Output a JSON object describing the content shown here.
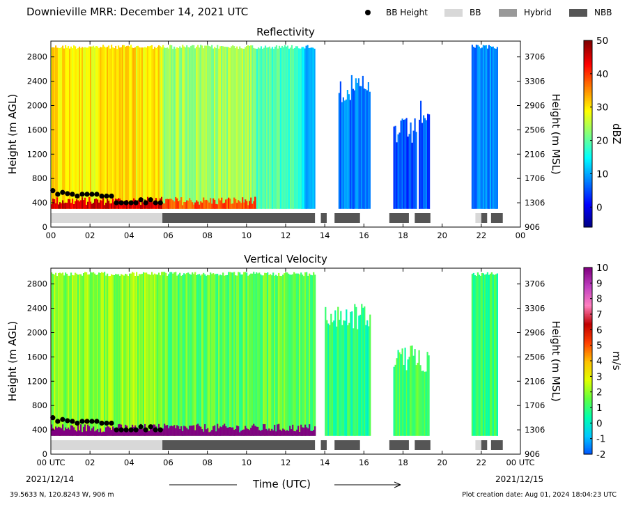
{
  "header": {
    "title": "Downieville MRR:  December 14, 2021 UTC"
  },
  "legend": {
    "items": [
      {
        "label": "BB Height",
        "color": "#000000",
        "kind": "dot"
      },
      {
        "label": "BB",
        "color": "#d8d8d8",
        "kind": "box"
      },
      {
        "label": "Hybrid",
        "color": "#999999",
        "kind": "box"
      },
      {
        "label": "NBB",
        "color": "#555555",
        "kind": "box"
      }
    ]
  },
  "footer": {
    "location": "39.5633 N, 120.8243 W, 906 m",
    "creation": "Plot creation date: Aug 01, 2024 18:04:23 UTC",
    "xlabel": "Time (UTC)",
    "date_start": "2021/12/14",
    "date_end": "2021/12/15"
  },
  "chart_data": [
    {
      "type": "heatmap",
      "title": "Reflectivity",
      "xlabel": "Time (UTC)",
      "ylabel": "Height (m AGL)",
      "ylabel_right": "Height (m MSL)",
      "colorbar_label": "dBZ",
      "xlim": [
        0,
        24
      ],
      "ylim": [
        0,
        3060
      ],
      "x_ticks": [
        "00",
        "02",
        "04",
        "06",
        "08",
        "10",
        "12",
        "14",
        "16",
        "18",
        "20",
        "22",
        "00"
      ],
      "y_ticks": [
        0,
        400,
        800,
        1200,
        1600,
        2000,
        2400,
        2800
      ],
      "y_ticks_right": [
        906,
        1306,
        1706,
        2106,
        2506,
        2906,
        3306,
        3706
      ],
      "colorbar_range": [
        -6,
        50
      ],
      "colorbar_ticks": [
        0,
        10,
        20,
        30,
        40,
        50
      ],
      "colormap": [
        "#00007f",
        "#0000ff",
        "#0080ff",
        "#00ffff",
        "#80ff80",
        "#ffff00",
        "#ff8000",
        "#ff0000",
        "#7f0000"
      ],
      "echo_segments": [
        {
          "start": 0.0,
          "end": 5.7,
          "top": 3000,
          "value": 30
        },
        {
          "start": 5.7,
          "end": 10.5,
          "top": 3000,
          "value": 24
        },
        {
          "start": 10.5,
          "end": 12.8,
          "top": 3000,
          "value": 19
        },
        {
          "start": 12.8,
          "end": 13.5,
          "top": 3000,
          "value": 12
        },
        {
          "start": 14.7,
          "end": 16.3,
          "top": 2500,
          "value": 8
        },
        {
          "start": 17.5,
          "end": 18.7,
          "top": 1800,
          "value": 5
        },
        {
          "start": 18.8,
          "end": 19.3,
          "top": 2100,
          "value": 6
        },
        {
          "start": 21.5,
          "end": 22.8,
          "top": 3000,
          "value": 9
        }
      ],
      "bb_height": {
        "x": [
          0.1,
          0.35,
          0.6,
          0.85,
          1.1,
          1.35,
          1.6,
          1.85,
          2.1,
          2.35,
          2.6,
          2.85,
          3.1,
          3.35,
          3.6,
          3.85,
          4.1,
          4.35,
          4.6,
          4.85,
          5.1,
          5.35,
          5.6
        ],
        "y": [
          600,
          540,
          570,
          550,
          540,
          510,
          540,
          540,
          540,
          540,
          510,
          510,
          510,
          400,
          400,
          400,
          400,
          400,
          450,
          400,
          450,
          400,
          400
        ]
      },
      "bb_type_bar": [
        {
          "start": 0.0,
          "end": 5.7,
          "type": "BB"
        },
        {
          "start": 5.7,
          "end": 13.5,
          "type": "NBB"
        },
        {
          "start": 13.8,
          "end": 14.1,
          "type": "NBB"
        },
        {
          "start": 14.5,
          "end": 15.8,
          "type": "NBB"
        },
        {
          "start": 17.3,
          "end": 18.3,
          "type": "NBB"
        },
        {
          "start": 18.6,
          "end": 19.4,
          "type": "NBB"
        },
        {
          "start": 21.7,
          "end": 22.0,
          "type": "BB"
        },
        {
          "start": 22.0,
          "end": 22.3,
          "type": "NBB"
        },
        {
          "start": 22.5,
          "end": 23.1,
          "type": "NBB"
        }
      ]
    },
    {
      "type": "heatmap",
      "title": "Vertical Velocity",
      "xlabel": "Time (UTC)",
      "ylabel": "Height (m AGL)",
      "ylabel_right": "Height (m MSL)",
      "colorbar_label": "m/s",
      "xlim": [
        0,
        24
      ],
      "ylim": [
        0,
        3060
      ],
      "x_ticks": [
        "00 UTC",
        "02",
        "04",
        "06",
        "08",
        "10",
        "12",
        "14",
        "16",
        "18",
        "20",
        "22",
        "00 UTC"
      ],
      "y_ticks": [
        0,
        400,
        800,
        1200,
        1600,
        2000,
        2400,
        2800
      ],
      "y_ticks_right": [
        906,
        1306,
        1706,
        2106,
        2506,
        2906,
        3306,
        3706
      ],
      "colorbar_range": [
        -2,
        10
      ],
      "colorbar_ticks": [
        -2,
        -1,
        0,
        1,
        2,
        3,
        4,
        5,
        6,
        7,
        8,
        9,
        10
      ],
      "colormap": [
        "#0050ff",
        "#00c8ff",
        "#00ffb0",
        "#60ff40",
        "#e0ff00",
        "#ffc000",
        "#ff4000",
        "#c00000",
        "#ff80c0",
        "#c040c0",
        "#800080"
      ],
      "echo_segments": [
        {
          "start": 0.0,
          "end": 5.7,
          "top": 3000,
          "value": 2
        },
        {
          "start": 5.7,
          "end": 13.5,
          "top": 3000,
          "value": 1.5
        },
        {
          "start": 14.0,
          "end": 16.3,
          "top": 2500,
          "value": 0.8
        },
        {
          "start": 17.5,
          "end": 19.3,
          "top": 1800,
          "value": 1.2
        },
        {
          "start": 21.5,
          "end": 22.8,
          "top": 3000,
          "value": 1.0
        }
      ],
      "bb_height": {
        "x": [
          0.1,
          0.35,
          0.6,
          0.85,
          1.1,
          1.35,
          1.6,
          1.85,
          2.1,
          2.35,
          2.6,
          2.85,
          3.1,
          3.35,
          3.6,
          3.85,
          4.1,
          4.35,
          4.6,
          4.85,
          5.1,
          5.35,
          5.6
        ],
        "y": [
          600,
          540,
          570,
          550,
          540,
          510,
          540,
          540,
          540,
          540,
          510,
          510,
          510,
          400,
          400,
          400,
          400,
          400,
          450,
          400,
          450,
          400,
          400
        ]
      },
      "bb_type_bar": [
        {
          "start": 0.0,
          "end": 5.7,
          "type": "BB"
        },
        {
          "start": 5.7,
          "end": 13.5,
          "type": "NBB"
        },
        {
          "start": 13.8,
          "end": 14.1,
          "type": "NBB"
        },
        {
          "start": 14.5,
          "end": 15.8,
          "type": "NBB"
        },
        {
          "start": 17.3,
          "end": 18.3,
          "type": "NBB"
        },
        {
          "start": 18.6,
          "end": 19.4,
          "type": "NBB"
        },
        {
          "start": 21.7,
          "end": 22.0,
          "type": "BB"
        },
        {
          "start": 22.0,
          "end": 22.3,
          "type": "NBB"
        },
        {
          "start": 22.5,
          "end": 23.1,
          "type": "NBB"
        }
      ]
    }
  ]
}
